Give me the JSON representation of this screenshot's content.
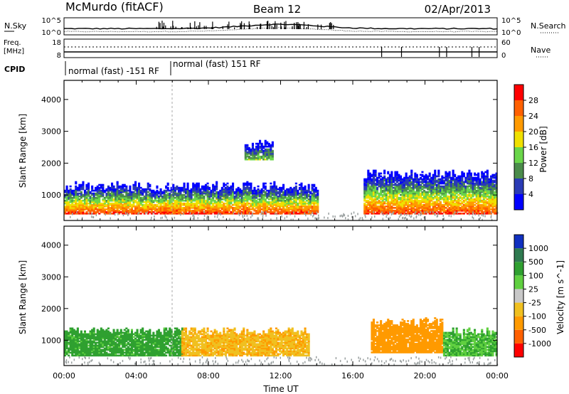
{
  "header": {
    "station": "McMurdo (fitACF)",
    "beam": "Beam 12",
    "date": "02/Apr/2013"
  },
  "strips": {
    "sky": {
      "left_label": "N.Sky",
      "right_label": "N.Search",
      "left_ticks": [
        "10^5",
        "10^0"
      ],
      "right_ticks": [
        "10^5",
        "10^0"
      ]
    },
    "freq": {
      "left_label_1": "Freq.",
      "left_label_2": "[MHz]",
      "right_label": "Nave",
      "left_ticks": [
        "18",
        "8"
      ],
      "right_ticks": [
        "60",
        "0"
      ]
    },
    "cpid": {
      "label": "CPID",
      "segment_1": "normal (fast) -151 RF",
      "segment_2": "normal (fast) 151 RF"
    }
  },
  "colors": {
    "power_scale": [
      "#0000ff",
      "#2a3bb5",
      "#4b8c4b",
      "#6ad64a",
      "#f0e000",
      "#ff9a00",
      "#ff6000",
      "#ff0000"
    ],
    "velocity_scale": [
      "#1030c0",
      "#2f7a50",
      "#2fa030",
      "#60d040",
      "#c8c8c8",
      "#f0c020",
      "#ff9a00",
      "#ff6000",
      "#ff0000"
    ],
    "ground_scatter": "#9aa0a0"
  },
  "chart_data": [
    {
      "type": "heatmap",
      "name": "power",
      "xlabel": "",
      "ylabel": "Slant Range [km]",
      "xlim": [
        "00:00",
        "24:00"
      ],
      "ylim": [
        200,
        4600
      ],
      "yticks": [
        "1000",
        "2000",
        "3000",
        "4000"
      ],
      "colorbar_label": "Power [dB]",
      "colorbar_ticks": [
        "4",
        "8",
        "12",
        "16",
        "20",
        "24",
        "28"
      ],
      "regions": [
        {
          "t0": 0.0,
          "t1": 14.0,
          "r0": 400,
          "r1": 1400,
          "peak_db": 28
        },
        {
          "t0": 10.0,
          "t1": 11.5,
          "r0": 2100,
          "r1": 2700,
          "peak_db": 14
        },
        {
          "t0": 16.6,
          "t1": 24.0,
          "r0": 400,
          "r1": 1800,
          "peak_db": 28
        }
      ]
    },
    {
      "type": "heatmap",
      "name": "velocity",
      "xlabel": "Time UT",
      "ylabel": "Slant Range [km]",
      "xlim": [
        "00:00",
        "24:00"
      ],
      "ylim": [
        200,
        4600
      ],
      "yticks": [
        "1000",
        "2000",
        "3000",
        "4000"
      ],
      "xticks": [
        "00:00",
        "04:00",
        "08:00",
        "12:00",
        "16:00",
        "20:00",
        "00:00"
      ],
      "colorbar_label": "Velocity [m s^-1]",
      "colorbar_ticks": [
        "1000",
        "500",
        "100",
        "25",
        "-25",
        "-100",
        "-500",
        "-1000"
      ],
      "regions": [
        {
          "t0": 0.0,
          "t1": 6.5,
          "r0": 500,
          "r1": 1400,
          "velocity": 200
        },
        {
          "t0": 6.5,
          "t1": 13.5,
          "r0": 500,
          "r1": 1400,
          "velocity": -80
        },
        {
          "t0": 17.0,
          "t1": 21.0,
          "r0": 600,
          "r1": 1700,
          "velocity": -300
        },
        {
          "t0": 21.0,
          "t1": 24.0,
          "r0": 500,
          "r1": 1400,
          "velocity": 100
        }
      ]
    }
  ]
}
